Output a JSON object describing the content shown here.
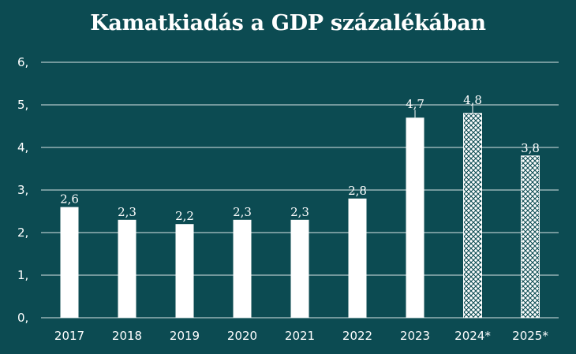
{
  "chart_data": {
    "type": "bar",
    "title": "Kamatkiadás a GDP százalékában",
    "categories": [
      "2017",
      "2018",
      "2019",
      "2020",
      "2021",
      "2022",
      "2023",
      "2024*",
      "2025*"
    ],
    "values": [
      2.6,
      2.3,
      2.2,
      2.3,
      2.3,
      2.8,
      4.7,
      4.8,
      3.8
    ],
    "data_labels": [
      "2,6",
      "2,3",
      "2,2",
      "2,3",
      "2,3",
      "2,8",
      "4,7",
      "4,8",
      "3,8"
    ],
    "forecast": [
      false,
      false,
      false,
      false,
      false,
      false,
      false,
      true,
      true
    ],
    "yticks": [
      0,
      1,
      2,
      3,
      4,
      5,
      6
    ],
    "ytick_labels": [
      "0,",
      "1,",
      "2,",
      "3,",
      "4,",
      "5,",
      "6,"
    ],
    "ylim": [
      0,
      6
    ],
    "xlabel": "",
    "ylabel": "",
    "grid": true
  },
  "colors": {
    "background": "#0c4b52",
    "bar": "#ffffff",
    "grid": "#ffffff",
    "text": "#ffffff"
  }
}
